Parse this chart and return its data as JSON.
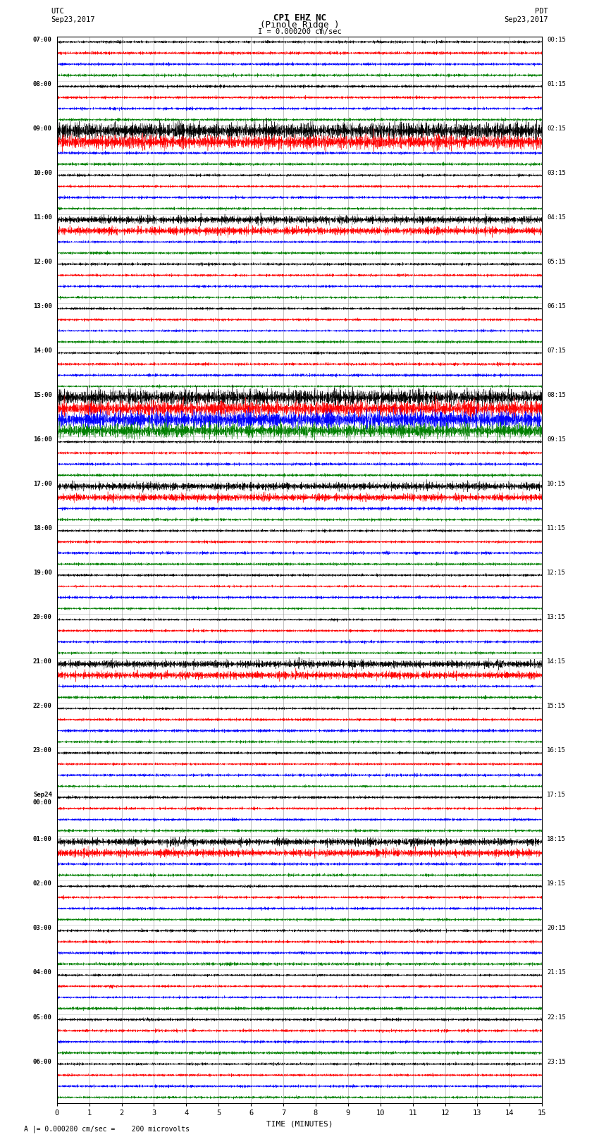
{
  "title_line1": "CPI EHZ NC",
  "title_line2": "(Pinole Ridge )",
  "scale_label": "I = 0.000200 cm/sec",
  "left_label_top": "UTC",
  "left_label_bot": "Sep23,2017",
  "right_label_top": "PDT",
  "right_label_bot": "Sep23,2017",
  "bottom_label": "TIME (MINUTES)",
  "footer_label": "A |= 0.000200 cm/sec =    200 microvolts",
  "utc_times_major": [
    "07:00",
    "08:00",
    "09:00",
    "10:00",
    "11:00",
    "12:00",
    "13:00",
    "14:00",
    "15:00",
    "16:00",
    "17:00",
    "18:00",
    "19:00",
    "20:00",
    "21:00",
    "22:00",
    "23:00",
    "Sep24\n00:00",
    "01:00",
    "02:00",
    "03:00",
    "04:00",
    "05:00",
    "06:00"
  ],
  "pdt_times_major": [
    "00:15",
    "01:15",
    "02:15",
    "03:15",
    "04:15",
    "05:15",
    "06:15",
    "07:15",
    "08:15",
    "09:15",
    "10:15",
    "11:15",
    "12:15",
    "13:15",
    "14:15",
    "15:15",
    "16:15",
    "17:15",
    "18:15",
    "19:15",
    "20:15",
    "21:15",
    "22:15",
    "23:15"
  ],
  "n_rows": 96,
  "trace_colors": [
    "black",
    "red",
    "blue",
    "green"
  ],
  "bg_color": "white",
  "grid_color": "#888888",
  "x_min": 0,
  "x_max": 15,
  "x_ticks": [
    0,
    1,
    2,
    3,
    4,
    5,
    6,
    7,
    8,
    9,
    10,
    11,
    12,
    13,
    14,
    15
  ],
  "base_noise_amp": 0.06,
  "event_rows_high": [
    8,
    9,
    32,
    33,
    34,
    35
  ],
  "event_rows_medium": [
    16,
    17,
    40,
    41,
    56,
    57,
    72,
    73
  ],
  "event_amp_high": 0.35,
  "event_amp_medium": 0.18,
  "seed": 12345,
  "n_pts": 3000
}
